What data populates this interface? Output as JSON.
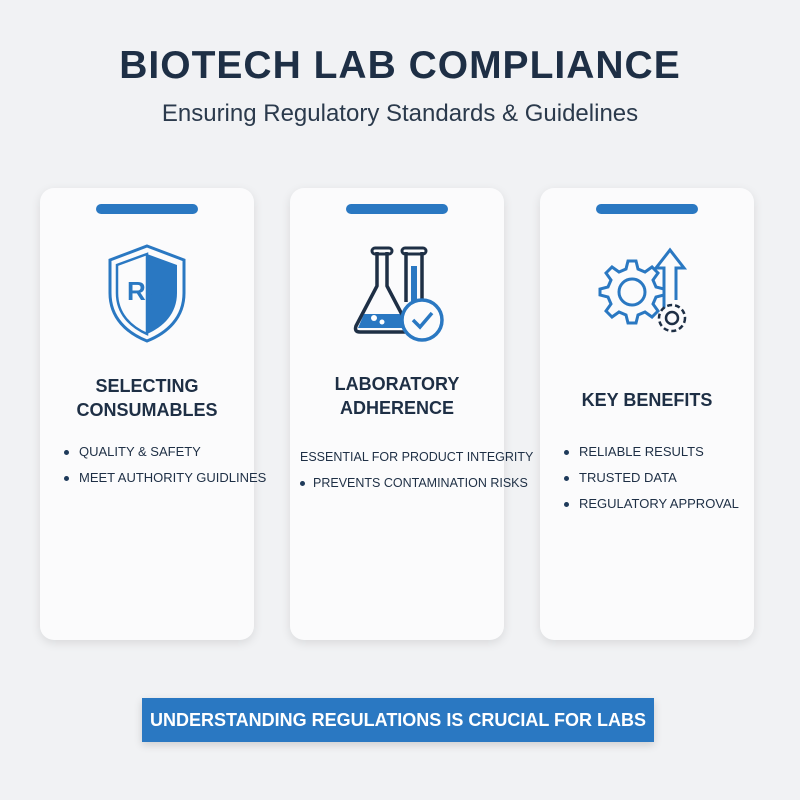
{
  "header": {
    "title": "BIOTECH LAB COMPLIANCE",
    "subtitle": "Ensuring Regulatory Standards & Guidelines"
  },
  "colors": {
    "accent": "#2a78c2",
    "text": "#1e2f45",
    "background": "#f1f2f4"
  },
  "cards": [
    {
      "icon": "shield-rc-icon",
      "icon_text": "RC",
      "title_line1": "SELECTING",
      "title_line2": "CONSUMABLES",
      "items": [
        "QUALITY & SAFETY",
        "MEET AUTHORITY GUIDLINES"
      ]
    },
    {
      "icon": "lab-flask-check-icon",
      "title_line1": "LABORATORY",
      "title_line2": "ADHERENCE",
      "items": [
        "ESSENTIAL FOR PRODUCT INTEGRITY",
        "PREVENTS CONTAMINATION RISKS"
      ]
    },
    {
      "icon": "gears-arrow-up-icon",
      "title_line1": "KEY BENEFITS",
      "items": [
        "RELIABLE RESULTS",
        "TRUSTED DATA",
        "REGULATORY APPROVAL"
      ]
    }
  ],
  "banner": {
    "text": "UNDERSTANDING REGULATIONS IS CRUCIAL FOR LABS"
  }
}
